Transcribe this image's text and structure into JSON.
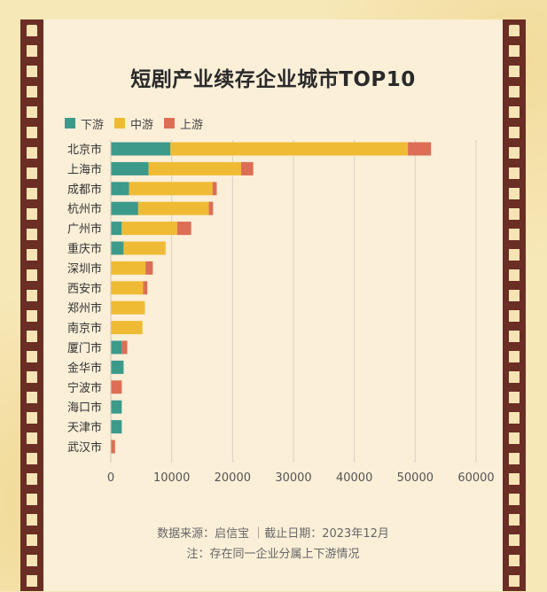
{
  "chart_data": {
    "type": "bar",
    "orientation": "horizontal",
    "stacked": true,
    "title": "短剧产业续存企业城市TOP10",
    "categories": [
      "北京市",
      "上海市",
      "成都市",
      "杭州市",
      "广州市",
      "重庆市",
      "深圳市",
      "西安市",
      "郑州市",
      "南京市",
      "厦门市",
      "金华市",
      "宁波市",
      "海口市",
      "天津市",
      "武汉市"
    ],
    "series": [
      {
        "name": "下游",
        "color": "#3c9a8b",
        "values": [
          9800,
          6200,
          3000,
          4500,
          1800,
          2100,
          0,
          0,
          0,
          0,
          1800,
          2100,
          0,
          1800,
          1800,
          0
        ]
      },
      {
        "name": "中游",
        "color": "#f0bb34",
        "values": [
          39000,
          15200,
          13700,
          11600,
          9100,
          6900,
          5700,
          5300,
          5600,
          5200,
          0,
          0,
          0,
          0,
          0,
          0
        ]
      },
      {
        "name": "上游",
        "color": "#dd6e55",
        "values": [
          3800,
          2000,
          700,
          700,
          2300,
          0,
          1200,
          700,
          0,
          0,
          900,
          0,
          1800,
          0,
          0,
          700
        ]
      }
    ],
    "xlim": [
      0,
      60000
    ],
    "xticks": [
      0,
      10000,
      20000,
      30000,
      40000,
      50000,
      60000
    ],
    "grid": "vertical",
    "legend": "top-left"
  },
  "footer": {
    "source": "数据来源：启信宝 ｜截止日期：2023年12月",
    "note": "注：存在同一企业分属上下游情况"
  }
}
